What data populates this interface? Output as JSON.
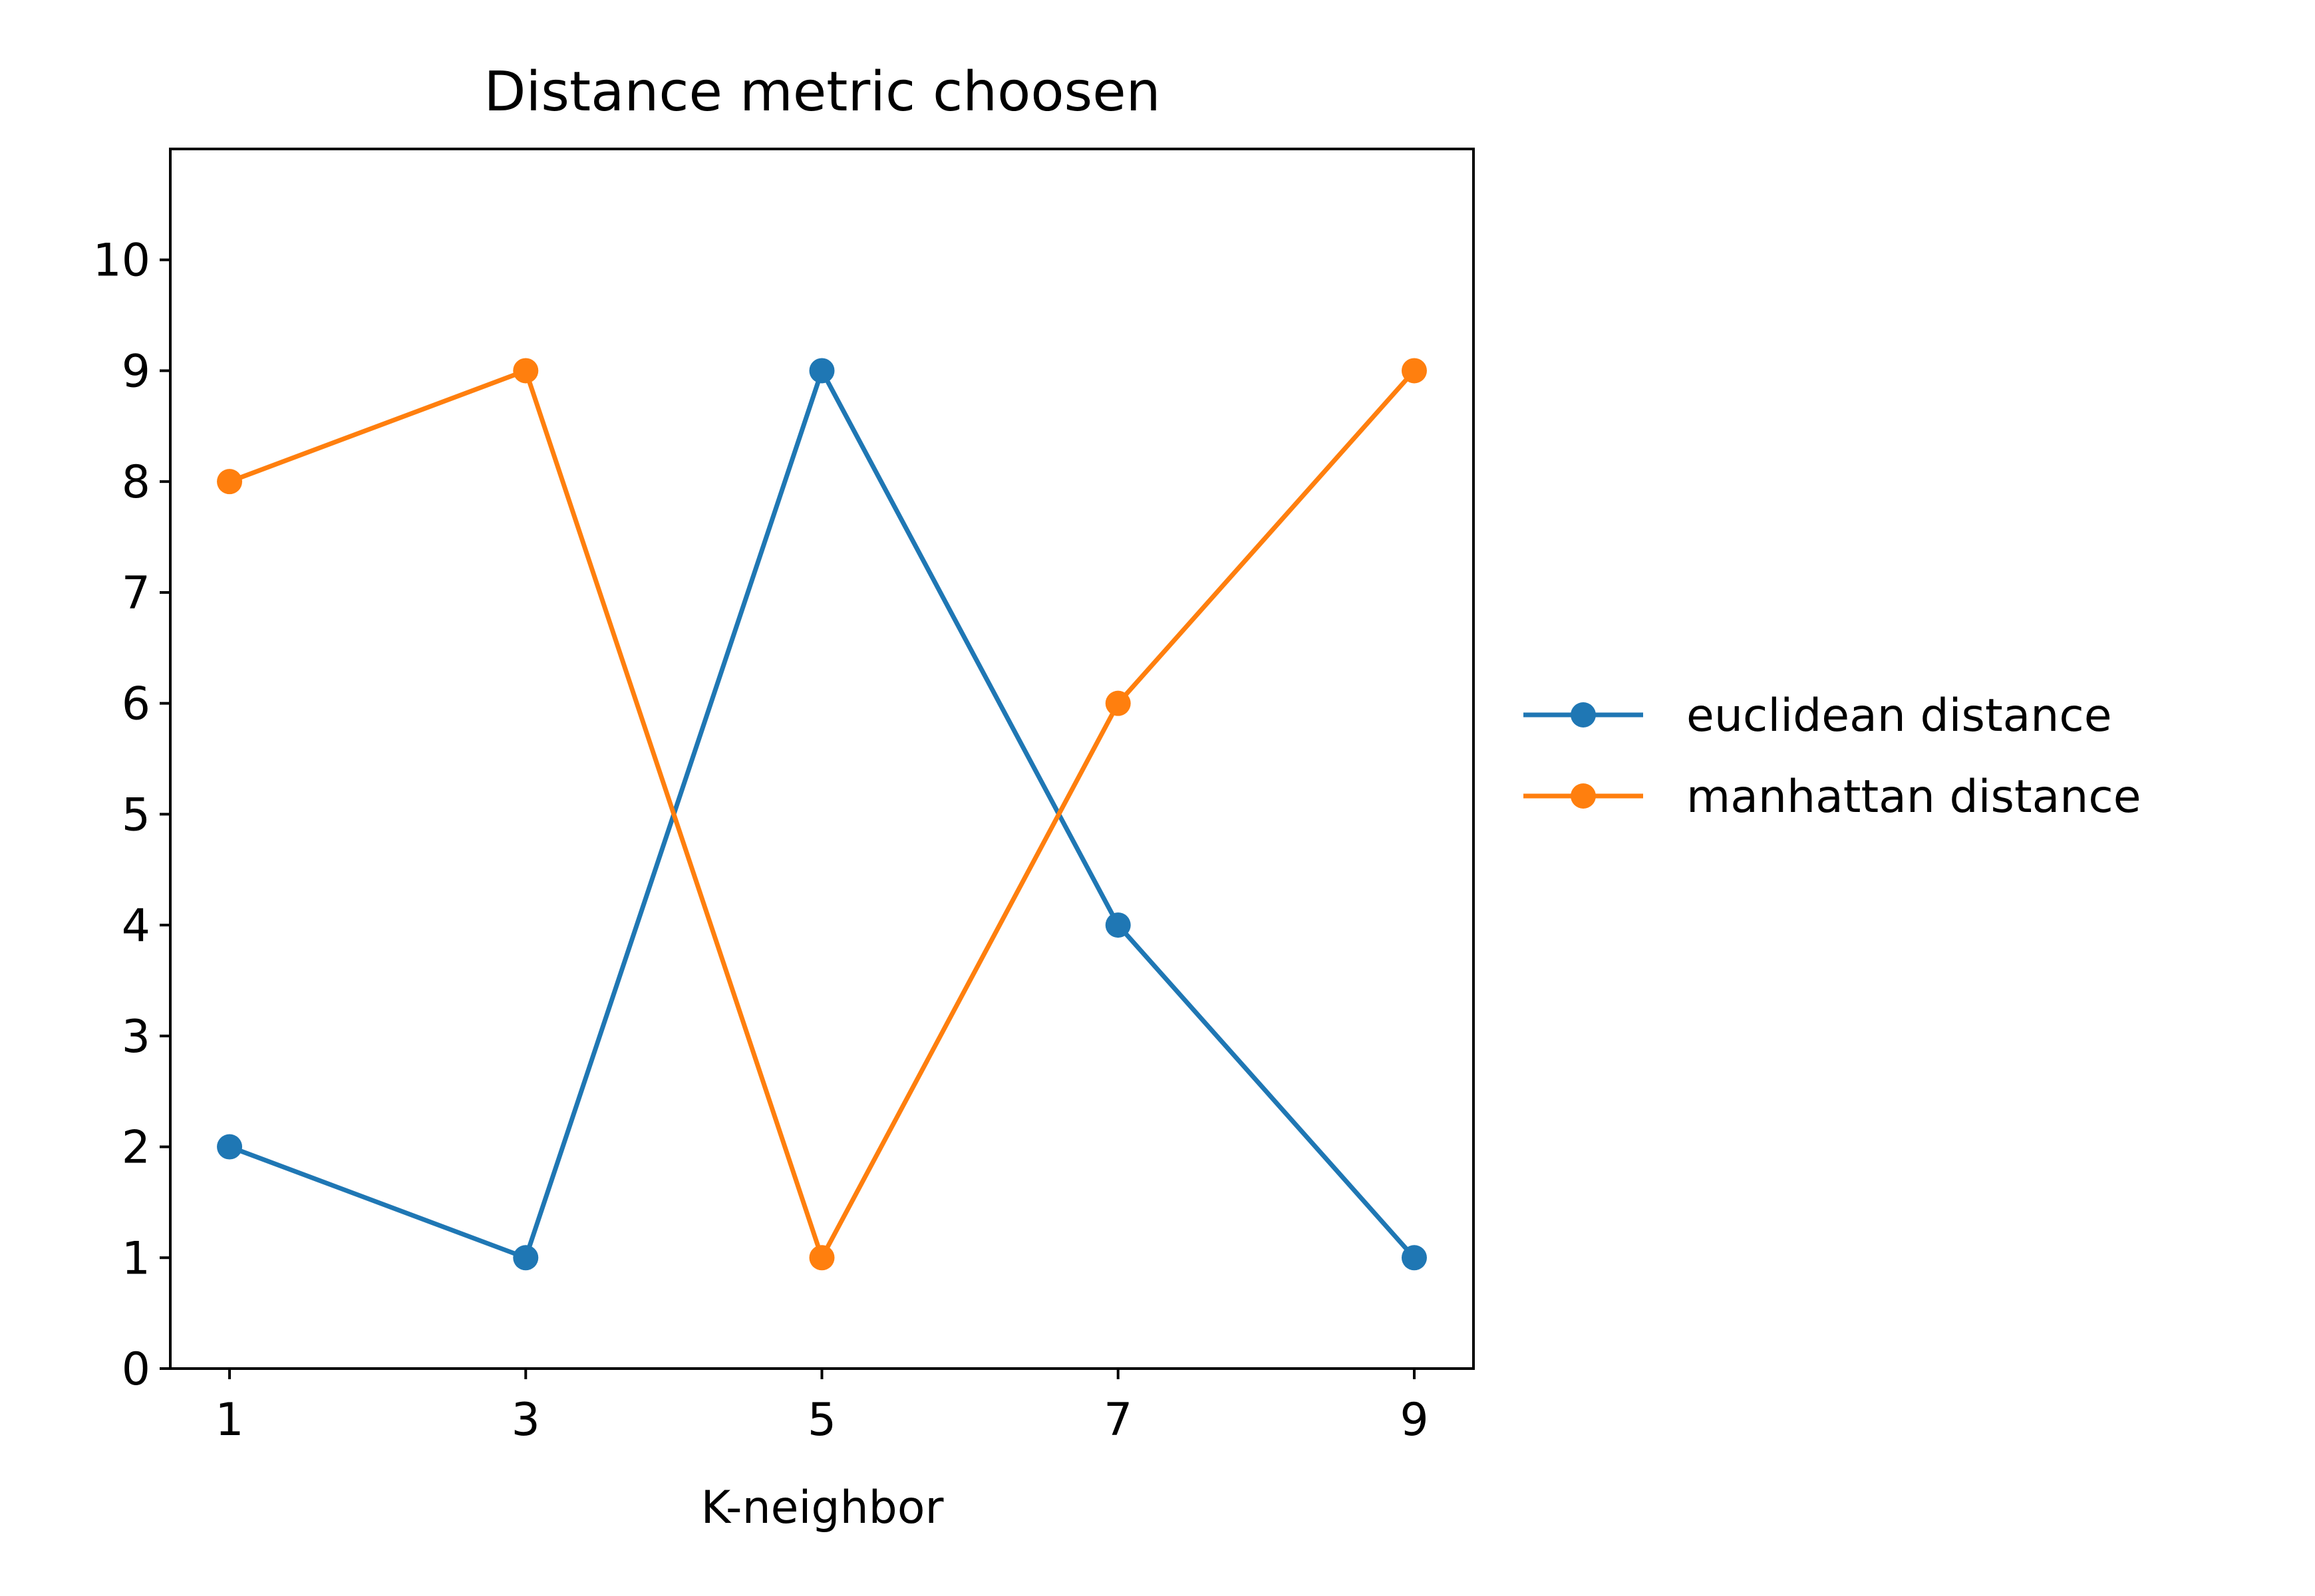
{
  "chart_data": {
    "type": "line",
    "title": "Distance metric choosen",
    "xlabel": "K-neighbor",
    "ylabel": "",
    "x": [
      1,
      3,
      5,
      7,
      9
    ],
    "xticks": [
      1,
      3,
      5,
      7,
      9
    ],
    "yticks": [
      0,
      1,
      2,
      3,
      4,
      5,
      6,
      7,
      8,
      9,
      10
    ],
    "xlim": [
      0.6,
      9.4
    ],
    "ylim": [
      0,
      11
    ],
    "grid": false,
    "legend_position": "right, outside plot",
    "series": [
      {
        "name": "euclidean distance",
        "color": "#1f77b4",
        "marker": "circle",
        "values": [
          2,
          1,
          9,
          4,
          1
        ]
      },
      {
        "name": "manhattan distance",
        "color": "#ff7f0e",
        "marker": "circle",
        "values": [
          8,
          9,
          1,
          6,
          9
        ]
      }
    ]
  }
}
